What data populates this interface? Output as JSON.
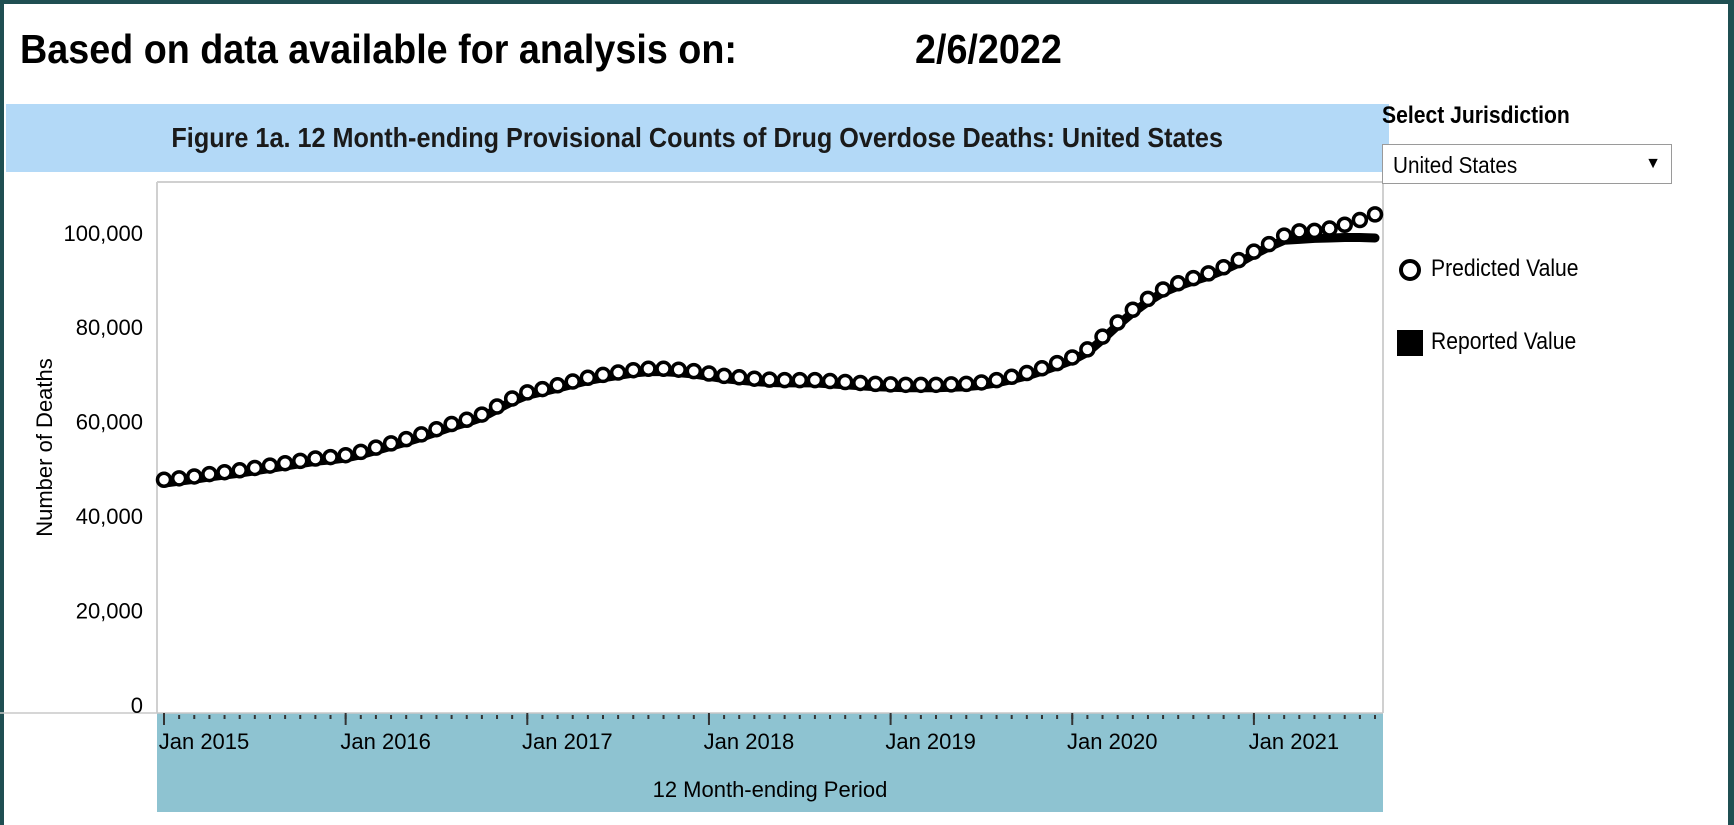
{
  "header": {
    "analysis_label": "Based on data available for analysis on:",
    "analysis_date": "2/6/2022"
  },
  "jurisdiction": {
    "label": "Select Jurisdiction",
    "selected": "United States"
  },
  "legend": {
    "predicted_label": "Predicted Value",
    "reported_label": "Reported Value"
  },
  "colors": {
    "title_band": "#b3d9f7",
    "axis_band": "#8ec3d1",
    "marks": "#000000",
    "frame_border": "#1f4f52"
  },
  "chart_data": {
    "type": "line",
    "title": "Figure 1a. 12 Month-ending Provisional Counts of Drug Overdose Deaths: United States",
    "xlabel": "12 Month-ending Period",
    "ylabel": "Number of Deaths",
    "ylim": [
      0,
      108000
    ],
    "y_ticks": [
      "0",
      "20,000",
      "40,000",
      "60,000",
      "80,000",
      "100,000"
    ],
    "y_tick_values": [
      0,
      20000,
      40000,
      60000,
      80000,
      100000
    ],
    "x_ticks": [
      "Jan 2015",
      "Jan 2016",
      "Jan 2017",
      "Jan 2018",
      "Jan 2019",
      "Jan 2020",
      "Jan 2021"
    ],
    "x_start": "Jan 2015",
    "x_end": "Sep 2021",
    "x": [
      "Jan 2015",
      "Feb 2015",
      "Mar 2015",
      "Apr 2015",
      "May 2015",
      "Jun 2015",
      "Jul 2015",
      "Aug 2015",
      "Sep 2015",
      "Oct 2015",
      "Nov 2015",
      "Dec 2015",
      "Jan 2016",
      "Feb 2016",
      "Mar 2016",
      "Apr 2016",
      "May 2016",
      "Jun 2016",
      "Jul 2016",
      "Aug 2016",
      "Sep 2016",
      "Oct 2016",
      "Nov 2016",
      "Dec 2016",
      "Jan 2017",
      "Feb 2017",
      "Mar 2017",
      "Apr 2017",
      "May 2017",
      "Jun 2017",
      "Jul 2017",
      "Aug 2017",
      "Sep 2017",
      "Oct 2017",
      "Nov 2017",
      "Dec 2017",
      "Jan 2018",
      "Feb 2018",
      "Mar 2018",
      "Apr 2018",
      "May 2018",
      "Jun 2018",
      "Jul 2018",
      "Aug 2018",
      "Sep 2018",
      "Oct 2018",
      "Nov 2018",
      "Dec 2018",
      "Jan 2019",
      "Feb 2019",
      "Mar 2019",
      "Apr 2019",
      "May 2019",
      "Jun 2019",
      "Jul 2019",
      "Aug 2019",
      "Sep 2019",
      "Oct 2019",
      "Nov 2019",
      "Dec 2019",
      "Jan 2020",
      "Feb 2020",
      "Mar 2020",
      "Apr 2020",
      "May 2020",
      "Jun 2020",
      "Jul 2020",
      "Aug 2020",
      "Sep 2020",
      "Oct 2020",
      "Nov 2020",
      "Dec 2020",
      "Jan 2021",
      "Feb 2021",
      "Mar 2021",
      "Apr 2021",
      "May 2021",
      "Jun 2021",
      "Jul 2021",
      "Aug 2021",
      "Sep 2021"
    ],
    "series": [
      {
        "name": "Predicted Value",
        "marker": "open-circle",
        "values": [
          47700,
          48000,
          48400,
          48900,
          49300,
          49700,
          50200,
          50700,
          51200,
          51700,
          52200,
          52500,
          52900,
          53600,
          54500,
          55400,
          56300,
          57300,
          58400,
          59500,
          60400,
          61500,
          63200,
          64900,
          66200,
          66900,
          67700,
          68500,
          69300,
          69900,
          70400,
          70900,
          71200,
          71200,
          71000,
          70700,
          70200,
          69700,
          69400,
          69100,
          68900,
          68800,
          68800,
          68800,
          68600,
          68400,
          68200,
          68000,
          67900,
          67800,
          67800,
          67800,
          67900,
          68000,
          68300,
          68800,
          69500,
          70300,
          71300,
          72400,
          73600,
          75300,
          78000,
          81000,
          83700,
          86000,
          88000,
          89300,
          90400,
          91400,
          92700,
          94200,
          96000,
          97600,
          99400,
          100300,
          100400,
          100900,
          101700,
          102700,
          103900
        ]
      },
      {
        "name": "Reported Value",
        "marker": "line",
        "values": [
          47000,
          47400,
          47800,
          48300,
          48700,
          49100,
          49600,
          50100,
          50600,
          51100,
          51600,
          51900,
          52300,
          53000,
          53900,
          54800,
          55700,
          56700,
          57800,
          58900,
          59800,
          60900,
          62600,
          64300,
          65600,
          66300,
          67100,
          67900,
          68700,
          69300,
          69800,
          70300,
          70600,
          70600,
          70400,
          70100,
          69600,
          69100,
          68800,
          68500,
          68300,
          68200,
          68200,
          68200,
          68000,
          67800,
          67600,
          67400,
          67300,
          67200,
          67200,
          67200,
          67300,
          67400,
          67700,
          68200,
          68900,
          69700,
          70700,
          71800,
          73000,
          74700,
          77400,
          80400,
          83100,
          85400,
          87400,
          88700,
          89800,
          90800,
          92100,
          93600,
          95400,
          97000,
          98400,
          98600,
          98800,
          98900,
          99000,
          99000,
          98900
        ]
      }
    ]
  }
}
